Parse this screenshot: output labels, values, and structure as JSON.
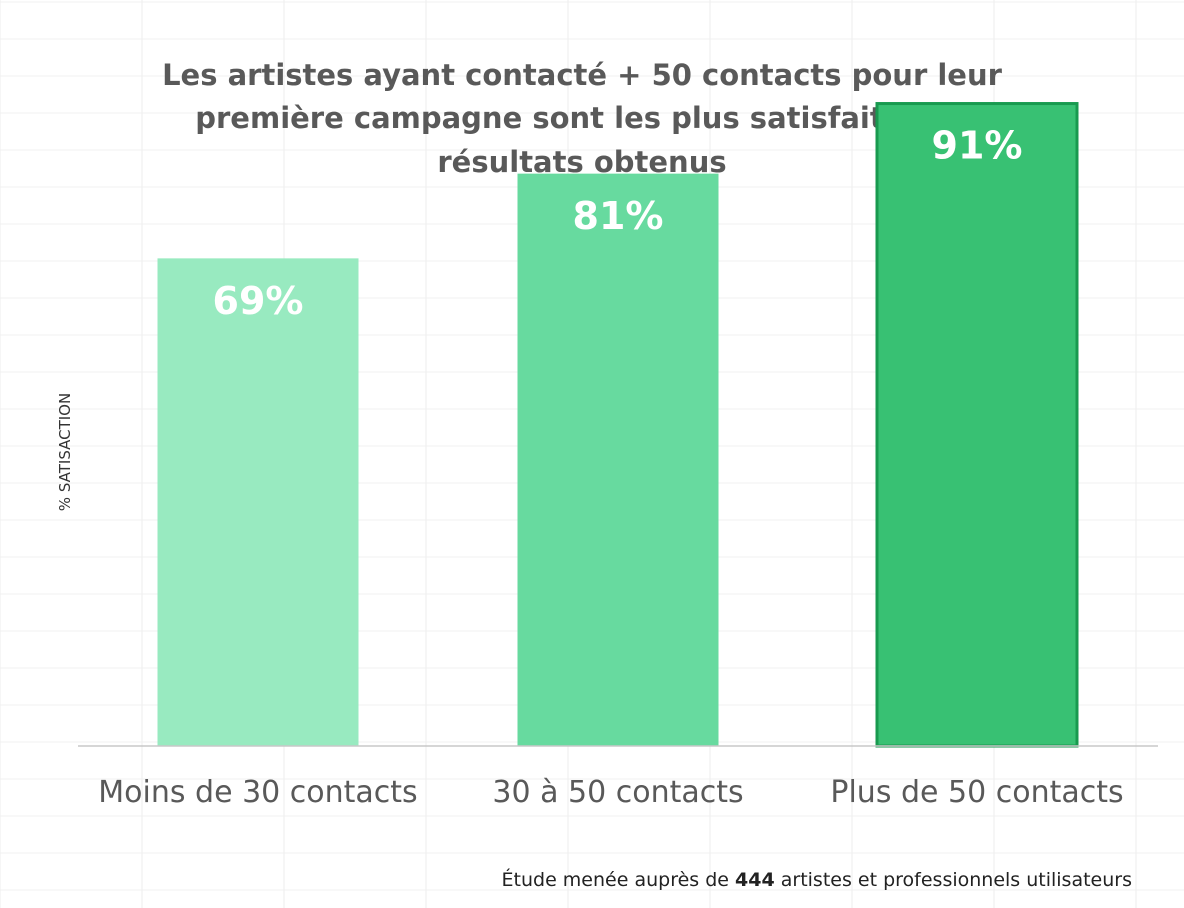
{
  "chart_data": {
    "type": "bar",
    "title_lines": [
      "Les artistes ayant contacté + 50 contacts pour leur",
      "première campagne sont les plus satisfaits des",
      "résultats obtenus"
    ],
    "ylabel": "% SATISACTION",
    "categories": [
      "Moins de 30 contacts",
      "30 à 50 contacts",
      "Plus de 50 contacts"
    ],
    "values": [
      69,
      81,
      91
    ],
    "data_labels": [
      "69%",
      "81%",
      "91%"
    ],
    "bar_colors": [
      "#98EAC0",
      "#67DA9F",
      "#38C173"
    ],
    "bar_border_colors": [
      "#98EAC0",
      "#67DA9F",
      "#189A4F"
    ],
    "ylim": [
      0,
      100
    ],
    "grid": false,
    "legend": "none"
  },
  "note": {
    "prefix": "Étude menée auprès de ",
    "count": "444",
    "suffix": " artistes et professionnels utilisateurs"
  }
}
